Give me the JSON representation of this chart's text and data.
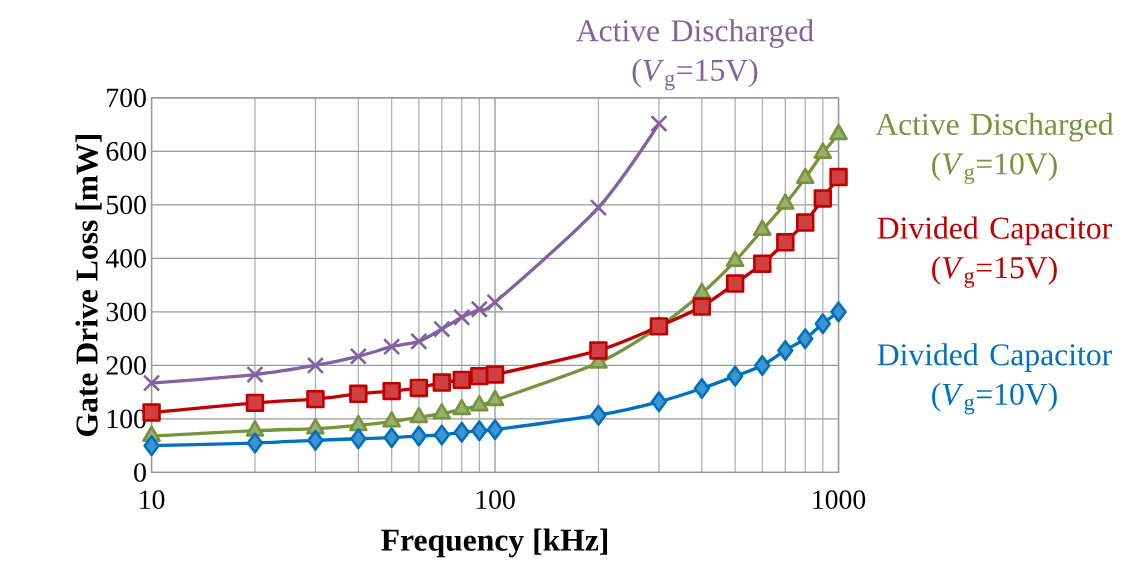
{
  "chart_data": {
    "type": "line",
    "xlabel": "Frequency [kHz]",
    "ylabel": "Gate Drive Loss [mW]",
    "log": "x",
    "grid": true,
    "line_style": "solid",
    "xlim": [
      10,
      1000
    ],
    "xticks": [
      10,
      100,
      1000
    ],
    "ylim": [
      0,
      700
    ],
    "yticks": [
      0,
      100,
      200,
      300,
      400,
      500,
      600,
      700
    ],
    "series": [
      {
        "name": "Active Discharged (*V*$_{g}$=15V)",
        "color": "#8064a2",
        "marker": "cross",
        "x": [
          10,
          20,
          30,
          40,
          50,
          60,
          70,
          80,
          90,
          100,
          200,
          300
        ],
        "values": [
          167,
          183,
          200,
          217,
          235,
          245,
          268,
          290,
          305,
          318,
          495,
          652
        ]
      },
      {
        "name": "Active Discharged (*V*$_{g}$=10V)",
        "color": "#77933c",
        "marker": "triangle",
        "x": [
          10,
          20,
          30,
          40,
          50,
          60,
          70,
          80,
          90,
          100,
          200,
          300,
          400,
          500,
          600,
          700,
          800,
          900,
          1000
        ],
        "values": [
          68,
          78,
          82,
          88,
          95,
          103,
          110,
          118,
          125,
          135,
          205,
          272,
          335,
          395,
          453,
          502,
          550,
          597,
          632
        ]
      },
      {
        "name": "Divided Capacitor (*V*$_{g}$=15V)",
        "color": "#c00000",
        "marker": "square",
        "x": [
          10,
          20,
          30,
          40,
          50,
          60,
          70,
          80,
          90,
          100,
          200,
          300,
          400,
          500,
          600,
          700,
          800,
          900,
          1000
        ],
        "values": [
          112,
          130,
          137,
          147,
          152,
          158,
          168,
          173,
          180,
          183,
          228,
          273,
          310,
          353,
          390,
          430,
          467,
          512,
          552
        ]
      },
      {
        "name": "Divided Capacitor (*V*$_{g}$=10V)",
        "color": "#0070c0",
        "marker": "diamond",
        "x": [
          10,
          20,
          30,
          40,
          50,
          60,
          70,
          80,
          90,
          100,
          200,
          300,
          400,
          500,
          600,
          700,
          800,
          900,
          1000
        ],
        "values": [
          50,
          55,
          60,
          63,
          65,
          68,
          70,
          75,
          78,
          80,
          107,
          132,
          157,
          180,
          200,
          228,
          250,
          278,
          300
        ]
      }
    ]
  }
}
